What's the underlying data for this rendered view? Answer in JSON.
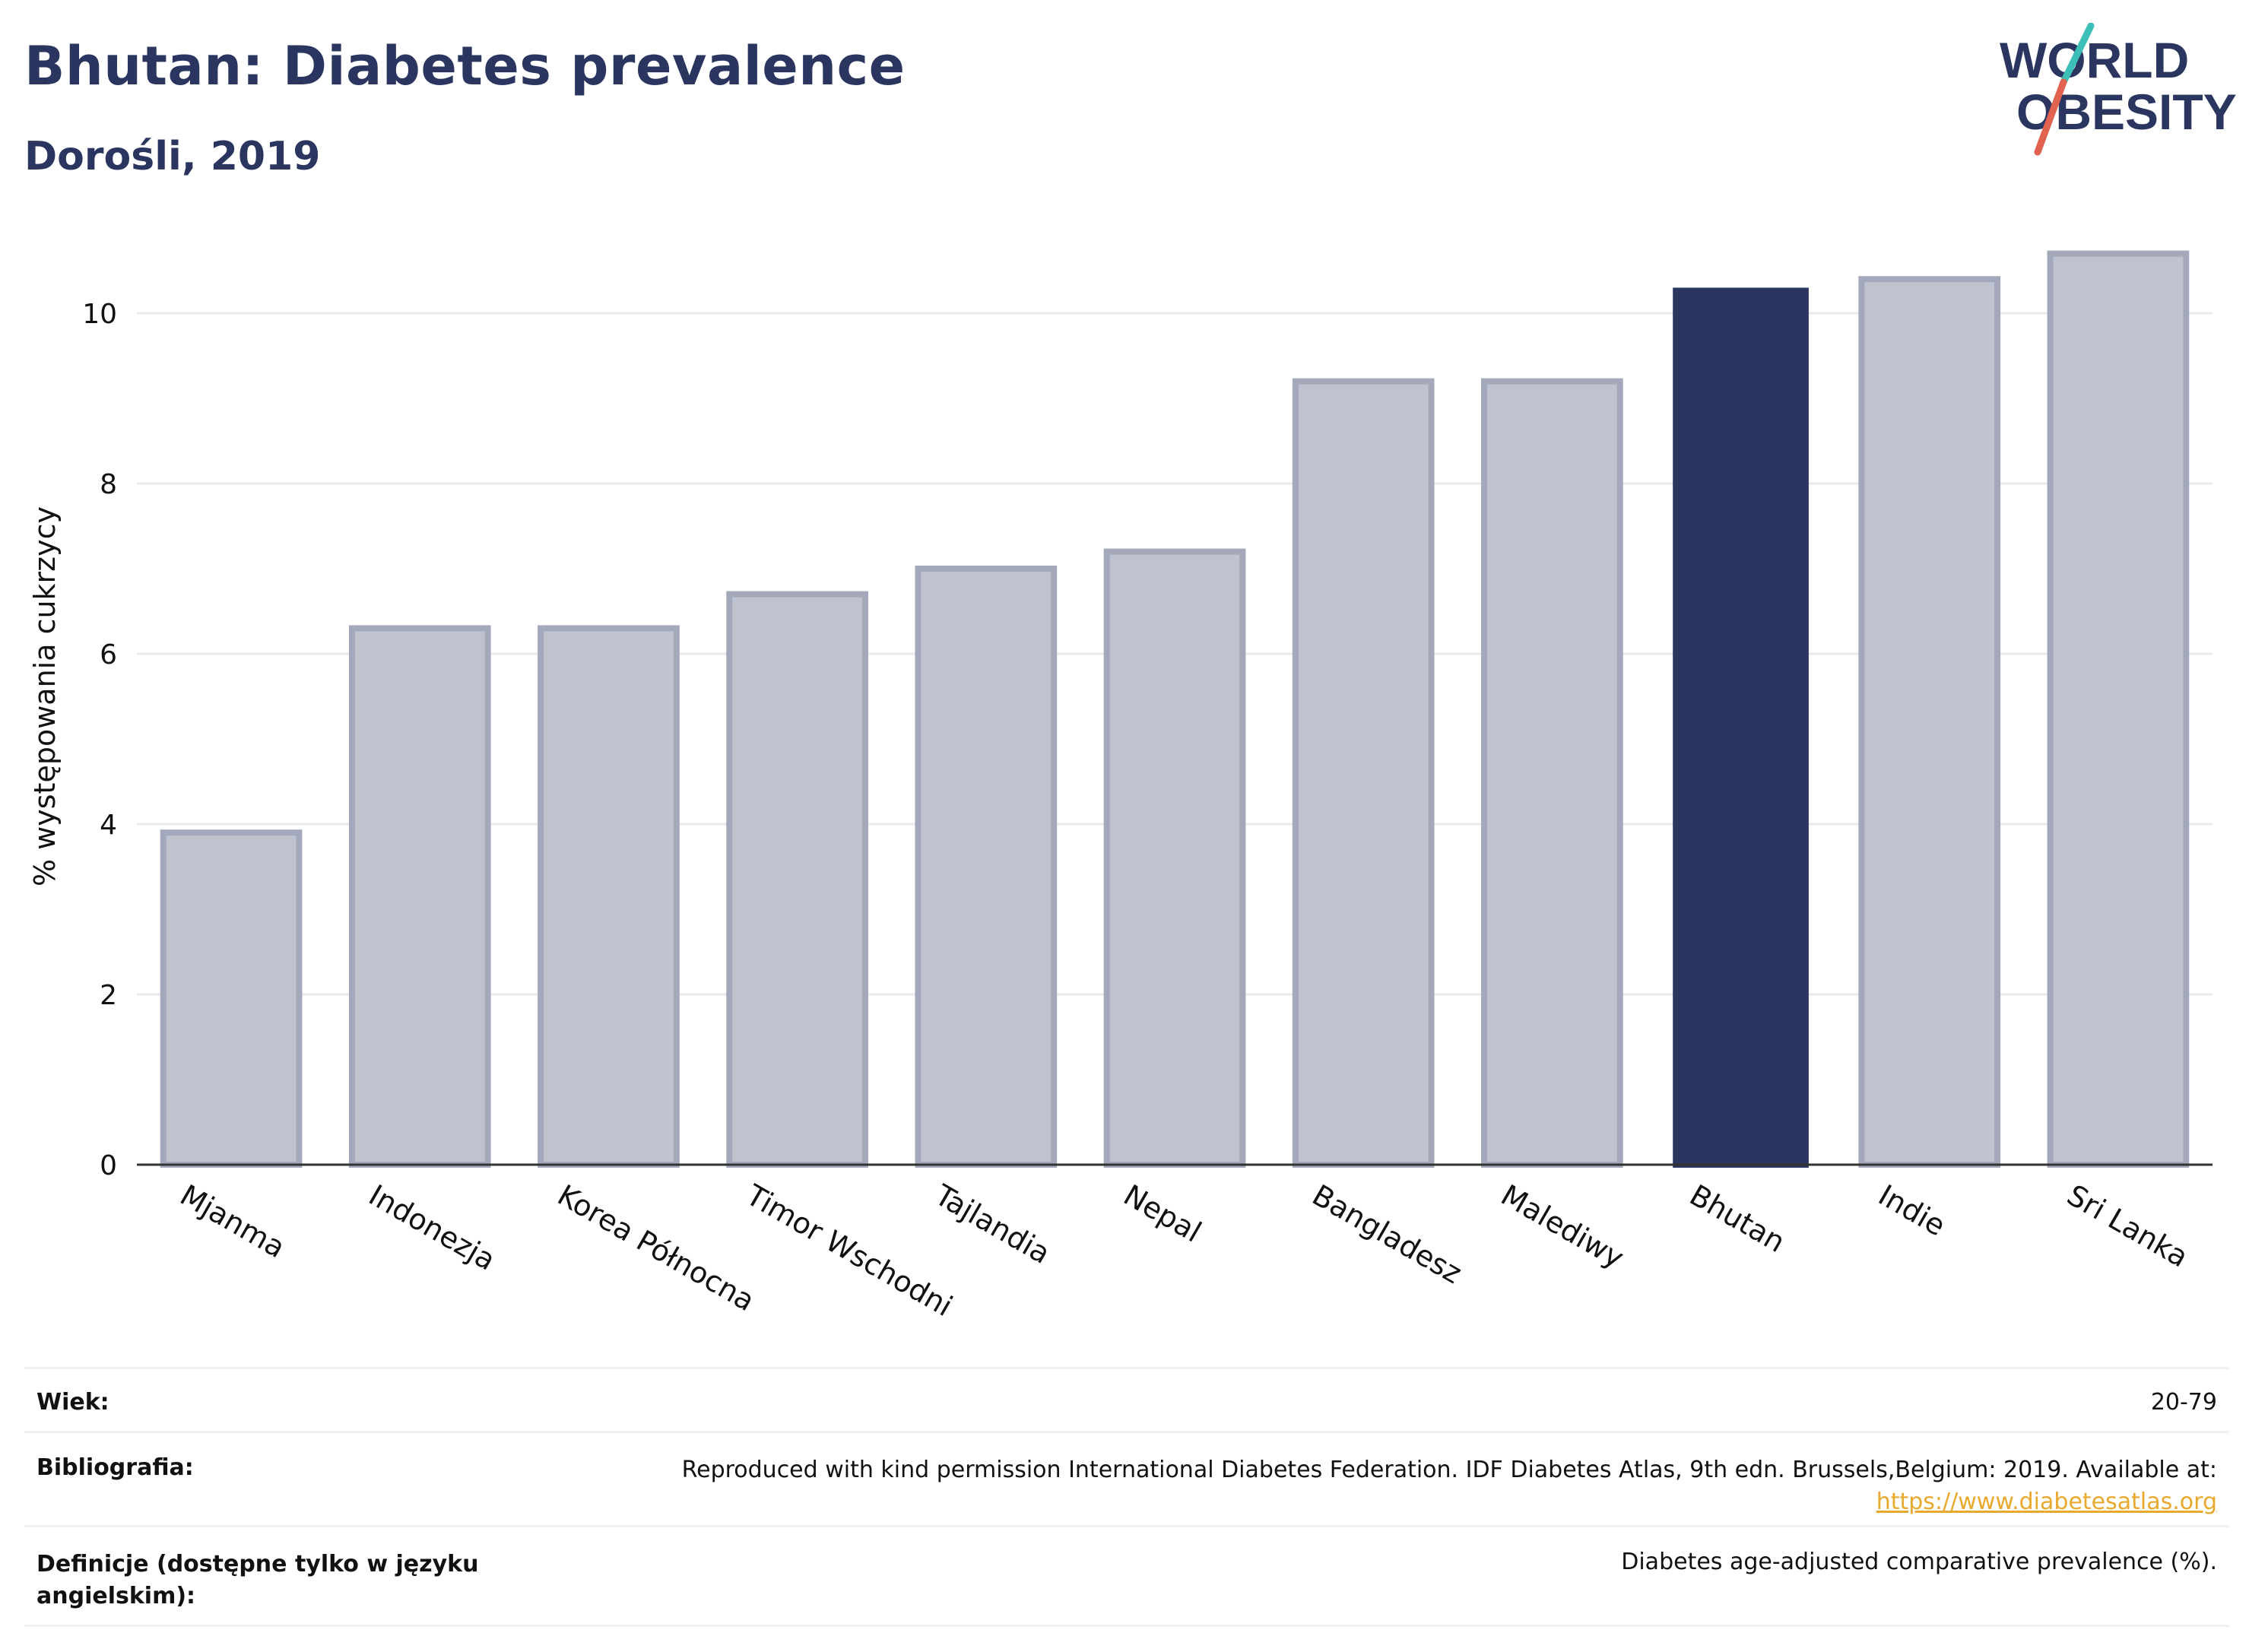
{
  "header": {
    "title": "Bhutan: Diabetes prevalence",
    "subtitle": "Dorośli, 2019"
  },
  "logo": {
    "line1": "WORLD",
    "line2": "OBESITY"
  },
  "colors": {
    "highlight": "#2a3560",
    "bar_fill": "#bfc3d0",
    "bar_stroke": "#a3a8ba",
    "grid": "#e8e9ed",
    "axis": "#333333",
    "logo_teal": "#3cbfb7",
    "logo_red": "#e0624f"
  },
  "chart_data": {
    "type": "bar",
    "title": "Bhutan: Diabetes prevalence",
    "subtitle": "Dorośli, 2019",
    "xlabel": "",
    "ylabel": "% występowania cukrzycy",
    "ylim": [
      0,
      11
    ],
    "yticks": [
      0,
      2,
      4,
      6,
      8,
      10
    ],
    "grid": true,
    "categories": [
      "Mjanma",
      "Indonezja",
      "Korea Północna",
      "Timor Wschodni",
      "Tajlandia",
      "Nepal",
      "Bangladesz",
      "Malediwy",
      "Bhutan",
      "Indie",
      "Sri Lanka"
    ],
    "values": [
      3.9,
      6.3,
      6.3,
      6.7,
      7.0,
      7.2,
      9.2,
      9.2,
      10.3,
      10.4,
      10.7
    ],
    "highlight": "Bhutan"
  },
  "meta": {
    "age_label": "Wiek:",
    "age_value": "20-79",
    "biblio_label": "Bibliografia:",
    "biblio_value": "Reproduced with kind permission International Diabetes Federation. IDF Diabetes Atlas, 9th edn. Brussels,Belgium: 2019. Available at:",
    "biblio_link": "https://www.diabetesatlas.org",
    "def_label_line1": "Definicje (dostępne tylko w języku",
    "def_label_line2": "angielskim):",
    "def_value": "Diabetes age-adjusted comparative prevalence (%)."
  }
}
